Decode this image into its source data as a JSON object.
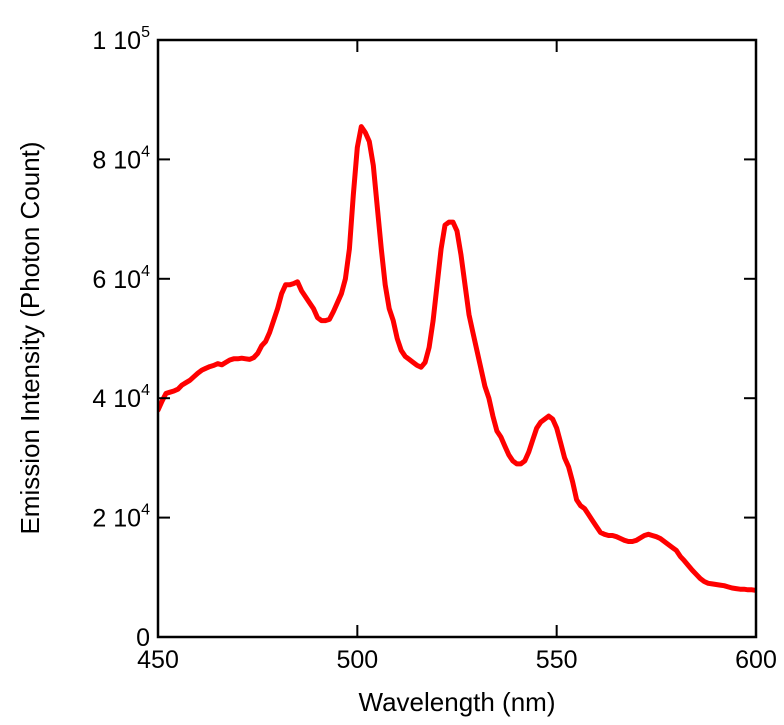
{
  "chart_data": {
    "type": "line",
    "title": "",
    "xlabel": "Wavelength (nm)",
    "ylabel": "Emission Intensity (Photon Count)",
    "xlim": [
      450,
      600
    ],
    "ylim": [
      0,
      100000
    ],
    "grid": false,
    "x_ticks": [
      {
        "value": 450,
        "label": "450"
      },
      {
        "value": 500,
        "label": "500"
      },
      {
        "value": 550,
        "label": "550"
      },
      {
        "value": 600,
        "label": "600"
      }
    ],
    "y_ticks": [
      {
        "value": 0,
        "mantissa": "0",
        "exponent": ""
      },
      {
        "value": 20000,
        "mantissa": "2 10",
        "exponent": "4"
      },
      {
        "value": 40000,
        "mantissa": "4 10",
        "exponent": "4"
      },
      {
        "value": 60000,
        "mantissa": "6 10",
        "exponent": "4"
      },
      {
        "value": 80000,
        "mantissa": "8 10",
        "exponent": "4"
      },
      {
        "value": 100000,
        "mantissa": "1 10",
        "exponent": "5"
      }
    ],
    "series": [
      {
        "color": "#ff0000",
        "x": [
          450,
          451,
          452,
          453,
          454,
          455,
          456,
          457,
          458,
          459,
          460,
          461,
          462,
          463,
          464,
          465,
          466,
          467,
          468,
          469,
          470,
          471,
          472,
          473,
          474,
          475,
          476,
          477,
          478,
          479,
          480,
          481,
          482,
          483,
          484,
          485,
          486,
          487,
          488,
          489,
          490,
          491,
          492,
          493,
          494,
          495,
          496,
          497,
          498,
          499,
          500,
          501,
          502,
          503,
          504,
          505,
          506,
          507,
          508,
          509,
          510,
          511,
          512,
          513,
          514,
          515,
          516,
          517,
          518,
          519,
          520,
          521,
          522,
          523,
          524,
          525,
          526,
          527,
          528,
          529,
          530,
          531,
          532,
          533,
          534,
          535,
          536,
          537,
          538,
          539,
          540,
          541,
          542,
          543,
          544,
          545,
          546,
          547,
          548,
          549,
          550,
          551,
          552,
          553,
          554,
          555,
          556,
          557,
          558,
          559,
          560,
          561,
          562,
          563,
          564,
          565,
          566,
          567,
          568,
          569,
          570,
          571,
          572,
          573,
          574,
          575,
          576,
          577,
          578,
          579,
          580,
          581,
          582,
          583,
          584,
          585,
          586,
          587,
          588,
          589,
          590,
          591,
          592,
          593,
          594,
          595,
          596,
          597,
          598,
          599,
          600
        ],
        "y": [
          38000,
          39500,
          40800,
          41000,
          41200,
          41500,
          42200,
          42600,
          43000,
          43600,
          44200,
          44700,
          45000,
          45300,
          45500,
          45800,
          45600,
          46000,
          46400,
          46600,
          46600,
          46700,
          46600,
          46500,
          46800,
          47500,
          48800,
          49500,
          51000,
          53000,
          55000,
          57500,
          59000,
          59000,
          59200,
          59500,
          58000,
          57000,
          56000,
          55000,
          53500,
          53000,
          53000,
          53200,
          54500,
          56000,
          57500,
          60000,
          65000,
          74000,
          82000,
          85500,
          84500,
          83000,
          79000,
          72000,
          65000,
          59000,
          55000,
          53000,
          50000,
          48000,
          47000,
          46500,
          46000,
          45500,
          45200,
          46000,
          48500,
          53000,
          59000,
          65000,
          69000,
          69500,
          69500,
          68000,
          64000,
          59000,
          54000,
          51000,
          48000,
          45000,
          42000,
          40000,
          37000,
          34500,
          33500,
          32000,
          30500,
          29500,
          29000,
          29000,
          29500,
          31000,
          33000,
          35000,
          36000,
          36500,
          37000,
          36500,
          35000,
          32500,
          30000,
          28500,
          26000,
          23000,
          22000,
          21500,
          20500,
          19500,
          18500,
          17500,
          17200,
          17000,
          17000,
          16800,
          16500,
          16200,
          16000,
          16000,
          16200,
          16600,
          17000,
          17200,
          17000,
          16800,
          16500,
          16000,
          15500,
          15000,
          14500,
          13500,
          12800,
          12000,
          11200,
          10500,
          9800,
          9300,
          9000,
          8900,
          8800,
          8700,
          8600,
          8400,
          8200,
          8100,
          8000,
          8000,
          7900,
          7900,
          7800
        ]
      }
    ]
  }
}
